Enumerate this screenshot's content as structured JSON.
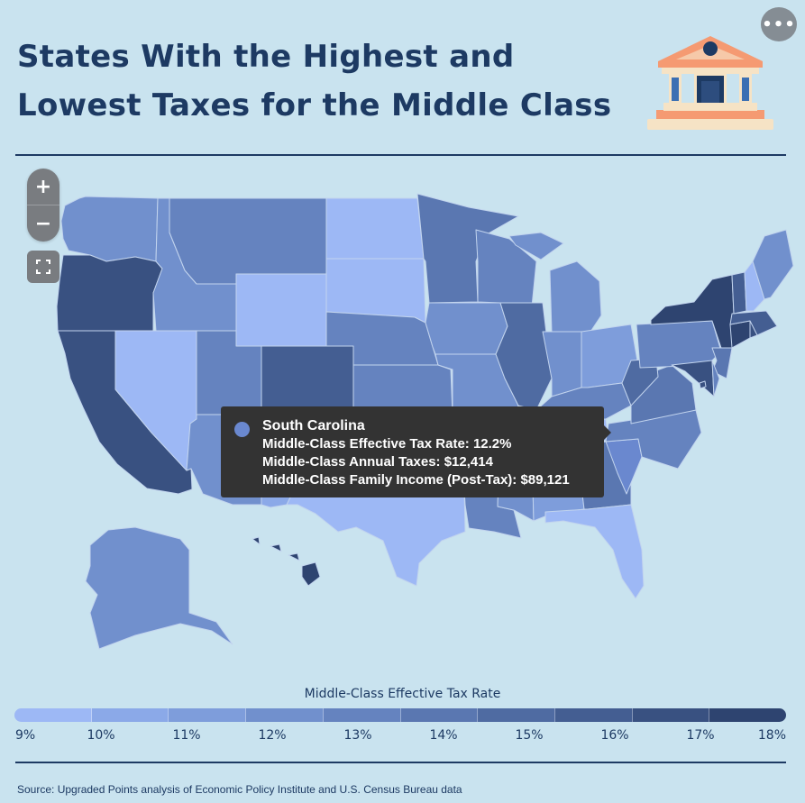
{
  "header": {
    "title_line1": "States With the Highest and",
    "title_line2": "Lowest Taxes for the Middle Class",
    "more_label": "•••"
  },
  "controls": {
    "zoom_in": "+",
    "zoom_out": "−",
    "fullscreen_icon": "fullscreen-icon"
  },
  "tooltip": {
    "state": "South Carolina",
    "rate_line": "Middle-Class Effective Tax Rate: 12.2%",
    "taxes_line": "Middle-Class Annual Taxes: $12,414",
    "income_line": "Middle-Class Family Income (Post-Tax): $89,121",
    "dot_color": "#6a88cf"
  },
  "legend": {
    "title": "Middle-Class Effective Tax Rate",
    "ticks": [
      "9%",
      "10%",
      "11%",
      "12%",
      "13%",
      "14%",
      "15%",
      "16%",
      "17%",
      "18%"
    ],
    "colors": [
      "#9db8f5",
      "#8ba9e8",
      "#7e9ddb",
      "#7190cd",
      "#6583bf",
      "#5a77b1",
      "#4f6ba2",
      "#445e92",
      "#395181",
      "#2e4470"
    ]
  },
  "source": "Source: Upgraded Points analysis of Economic Policy Institute and U.S. Census Bureau data",
  "map_colors": {
    "WA": "#7190cd",
    "OR": "#395181",
    "CA": "#395181",
    "NV": "#9db8f5",
    "ID": "#7190cd",
    "MT": "#6583bf",
    "WY": "#9db8f5",
    "UT": "#6583bf",
    "AZ": "#7190cd",
    "CO": "#445e92",
    "NM": "#8ba9e8",
    "ND": "#9db8f5",
    "SD": "#9db8f5",
    "NE": "#6583bf",
    "KS": "#6583bf",
    "OK": "#7e9ddb",
    "TX": "#9db8f5",
    "MN": "#5a77b1",
    "IA": "#7190cd",
    "MO": "#7190cd",
    "AR": "#6583bf",
    "LA": "#6583bf",
    "WI": "#6583bf",
    "IL": "#4f6ba2",
    "MI": "#7190cd",
    "IN": "#7190cd",
    "OH": "#7e9ddb",
    "KY": "#6583bf",
    "TN": "#9db8f5",
    "MS": "#7190cd",
    "AL": "#7e9ddb",
    "GA": "#5a77b1",
    "FL": "#9db8f5",
    "SC": "#6a88cf",
    "NC": "#6583bf",
    "VA": "#5a77b1",
    "WV": "#4f6ba2",
    "PA": "#6583bf",
    "NY": "#2e4470",
    "NJ": "#5a77b1",
    "MD": "#395181",
    "DE": "#6583bf",
    "CT": "#2e4470",
    "RI": "#395181",
    "MA": "#445e92",
    "VT": "#445e92",
    "NH": "#9db8f5",
    "ME": "#7190cd",
    "AK": "#7190cd",
    "HI": "#2e4470",
    "DC": "#395181"
  }
}
